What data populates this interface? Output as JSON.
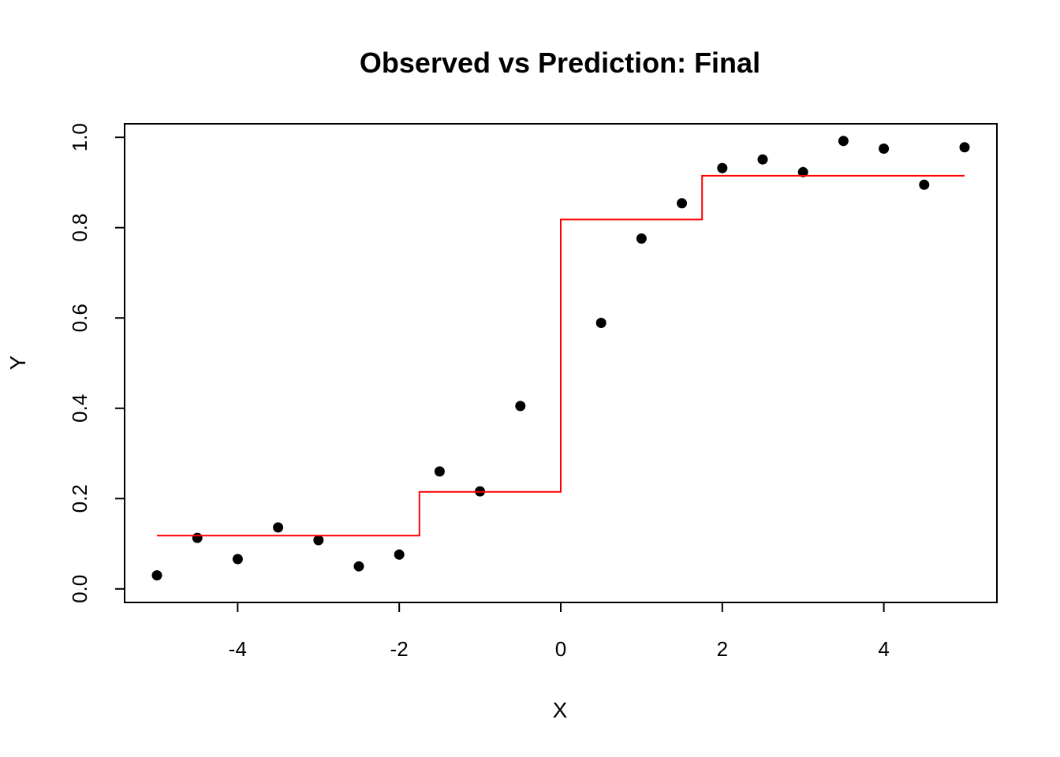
{
  "chart_data": {
    "type": "scatter",
    "title": "Observed vs Prediction: Final",
    "xlabel": "X",
    "ylabel": "Y",
    "xlim": [
      -5.4,
      5.4
    ],
    "ylim": [
      -0.03,
      1.03
    ],
    "x_ticks": [
      -4,
      -2,
      0,
      2,
      4
    ],
    "x_tick_labels": [
      "-4",
      "-2",
      "0",
      "2",
      "4"
    ],
    "y_ticks": [
      0.0,
      0.2,
      0.4,
      0.6,
      0.8,
      1.0
    ],
    "y_tick_labels": [
      "0.0",
      "0.2",
      "0.4",
      "0.6",
      "0.8",
      "1.0"
    ],
    "grid": false,
    "series": [
      {
        "type": "scatter",
        "color": "#000000",
        "x": [
          -5,
          -4.5,
          -4,
          -3.5,
          -3,
          -2.5,
          -2,
          -1.5,
          -1,
          -0.5,
          0,
          0.5,
          1,
          1.5,
          2,
          2.5,
          3,
          3.5,
          4,
          4.5,
          5
        ],
        "y": [
          0.03,
          0.113,
          0.066,
          0.136,
          0.108,
          0.05,
          0.076,
          0.26,
          0.216,
          0.405,
          null,
          0.589,
          0.776,
          0.854,
          0.932,
          0.951,
          0.923,
          0.992,
          0.975,
          0.895,
          0.978
        ]
      },
      {
        "type": "step",
        "color": "#ff0000",
        "x": [
          -5,
          -1.75,
          -1.75,
          0,
          0,
          1.75,
          1.75,
          5
        ],
        "y": [
          0.118,
          0.118,
          0.215,
          0.215,
          0.818,
          0.818,
          0.915,
          0.915
        ]
      }
    ]
  }
}
